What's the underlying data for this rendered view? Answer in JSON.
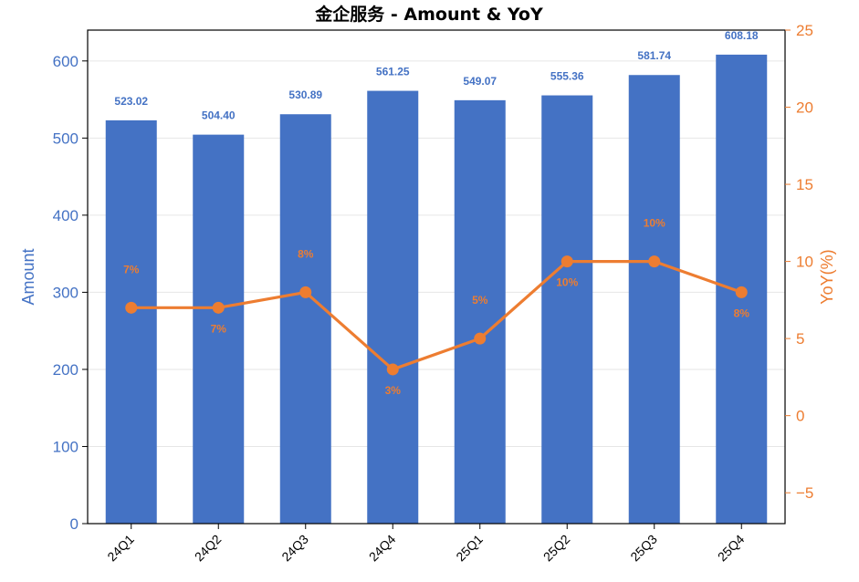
{
  "chart_data": {
    "type": "bar",
    "title": "金企服务 - Amount & YoY",
    "categories": [
      "24Q1",
      "24Q2",
      "24Q3",
      "24Q4",
      "25Q1",
      "25Q2",
      "25Q3",
      "25Q4"
    ],
    "series": [
      {
        "name": "Amount",
        "type": "bar",
        "axis": "left",
        "values": [
          523.02,
          504.4,
          530.89,
          561.25,
          549.07,
          555.36,
          581.74,
          608.18
        ],
        "labels": [
          "523.02",
          "504.40",
          "530.89",
          "561.25",
          "549.07",
          "555.36",
          "581.74",
          "608.18"
        ]
      },
      {
        "name": "YoY(%)",
        "type": "line",
        "axis": "right",
        "values": [
          7,
          7,
          8,
          3,
          5,
          10,
          10,
          8
        ],
        "labels": [
          "7%",
          "7%",
          "8%",
          "3%",
          "5%",
          "10%",
          "10%",
          "8%"
        ],
        "label_placement": [
          "above",
          "below",
          "above",
          "below",
          "above",
          "below",
          "above",
          "below"
        ]
      }
    ],
    "ylabel": "Amount",
    "ylabel_right": "YoY(%)",
    "ylim": [
      0,
      640
    ],
    "ylim_right": [
      -7,
      25
    ],
    "yticks": [
      "0",
      "100",
      "200",
      "300",
      "400",
      "500",
      "600"
    ],
    "yticks_values": [
      0,
      100,
      200,
      300,
      400,
      500,
      600
    ],
    "yticks_right": [
      "−5",
      "0",
      "5",
      "10",
      "15",
      "20",
      "25"
    ],
    "yticks_right_values": [
      -5,
      0,
      5,
      10,
      15,
      20,
      25
    ],
    "grid": "horizontal",
    "colors": {
      "bar": "#4472C4",
      "line": "#ED7D31",
      "grid": "#e6e6e6"
    }
  }
}
